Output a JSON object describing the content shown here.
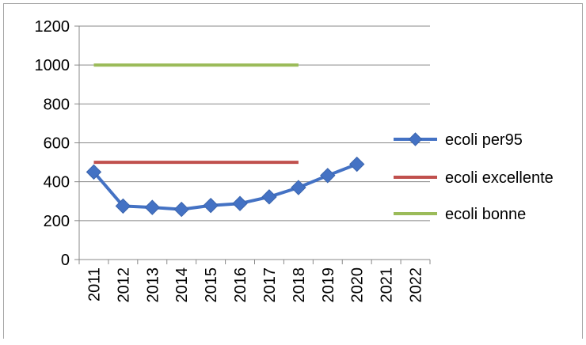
{
  "chart_data": {
    "type": "line",
    "title": "",
    "xlabel": "",
    "ylabel": "",
    "categories": [
      "2011",
      "2012",
      "2013",
      "2014",
      "2015",
      "2016",
      "2017",
      "2018",
      "2019",
      "2020",
      "2021",
      "2022"
    ],
    "ylim": [
      0,
      1200
    ],
    "yticks": [
      "0",
      "200",
      "400",
      "600",
      "800",
      "1000",
      "1200"
    ],
    "grid": "horizontal",
    "legend_position": "right",
    "series": [
      {
        "name": "ecoli per95",
        "color": "#4472C4",
        "marker": "diamond",
        "values": [
          450,
          275,
          268,
          258,
          278,
          288,
          322,
          370,
          432,
          490,
          null,
          null
        ]
      },
      {
        "name": "ecoli excellente",
        "color": "#C0504D",
        "marker": "none",
        "values": [
          500,
          500,
          500,
          500,
          500,
          500,
          500,
          500,
          null,
          null,
          null,
          null
        ]
      },
      {
        "name": "ecoli bonne",
        "color": "#9BBB59",
        "marker": "none",
        "values": [
          1000,
          1000,
          1000,
          1000,
          1000,
          1000,
          1000,
          1000,
          null,
          null,
          null,
          null
        ]
      }
    ]
  }
}
